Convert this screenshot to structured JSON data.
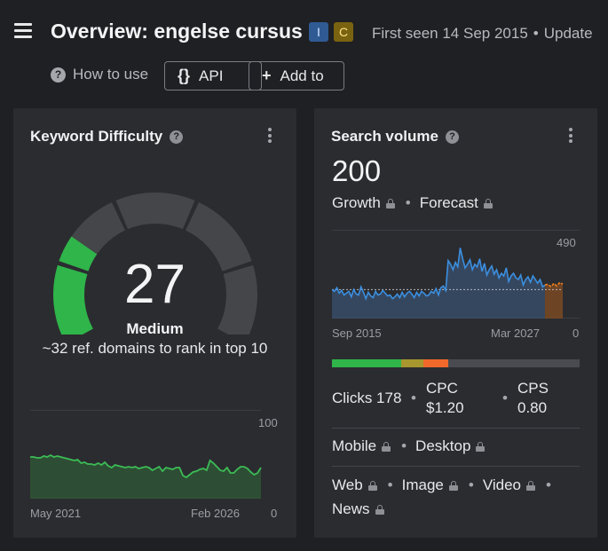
{
  "header": {
    "title": "Overview: engelse cursus",
    "badges": [
      {
        "label": "I",
        "color": "#2f5a94"
      },
      {
        "label": "C",
        "color": "#7a6310"
      }
    ],
    "first_seen": "First seen 14 Sep 2015",
    "updated_prefix": "Update",
    "how_to_use": "How to use",
    "api_label": "API",
    "add_to_label": "Add to",
    "icons": [
      "menu-icon",
      "help-icon",
      "braces-icon",
      "plus-icon"
    ]
  },
  "keyword_difficulty": {
    "title": "Keyword Difficulty",
    "value": "27",
    "value_num": 27,
    "max": 100,
    "level": "Medium",
    "description": "~32 ref. domains to rank in top 10",
    "gauge_color": "#2fb54a",
    "trend": {
      "y_max_label": "100",
      "y_min_label": "0",
      "x_start": "May 2021",
      "x_end": "Feb 2026",
      "values": [
        47,
        47,
        46,
        46,
        48,
        47,
        49,
        47,
        48,
        47,
        46,
        45,
        44,
        43,
        44,
        40,
        41,
        39,
        39,
        38,
        40,
        38,
        41,
        37,
        35,
        38,
        37,
        36,
        35,
        36,
        35,
        36,
        34,
        35,
        36,
        35,
        32,
        34,
        36,
        31,
        35,
        34,
        33,
        35,
        35,
        26,
        24,
        27,
        30,
        31,
        33,
        34,
        32,
        43,
        40,
        36,
        32,
        31,
        35,
        29,
        29,
        33,
        36,
        36,
        34,
        30,
        27,
        29,
        35
      ],
      "line_color": "#3cbc55"
    }
  },
  "search_volume": {
    "title": "Search volume",
    "value": "200",
    "growth_label": "Growth",
    "forecast_label": "Forecast",
    "trend": {
      "y_max_label": "490",
      "y_min_label": "0",
      "x_start": "Sep 2015",
      "x_end": "Mar 2027",
      "ymax": 490,
      "average": 160,
      "line_color": "#3b8fe0",
      "forecast_color": "#f0821e",
      "values": [
        160,
        150,
        170,
        140,
        155,
        130,
        140,
        150,
        120,
        160,
        135,
        130,
        175,
        145,
        110,
        145,
        125,
        115,
        150,
        130,
        135,
        155,
        140,
        125,
        130,
        110,
        120,
        135,
        115,
        145,
        120,
        140,
        150,
        135,
        115,
        145,
        125,
        150,
        140,
        125,
        130,
        150,
        140,
        165,
        130,
        170,
        180,
        155,
        320,
        300,
        270,
        310,
        285,
        390,
        330,
        280,
        300,
        325,
        270,
        300,
        285,
        330,
        260,
        305,
        240,
        270,
        290,
        245,
        270,
        225,
        250,
        235,
        280,
        205,
        235,
        250,
        225,
        215,
        240,
        185,
        215,
        230,
        200,
        235,
        215,
        195,
        215,
        175,
        185
      ],
      "forecast_values": [
        185,
        190,
        175,
        195,
        180,
        200,
        190
      ]
    },
    "difficulty_bar": [
      {
        "color": "#2fb54a",
        "fraction": 0.28
      },
      {
        "color": "#a8962e",
        "fraction": 0.09
      },
      {
        "color": "#f0682a",
        "fraction": 0.1
      },
      {
        "color": "#4a4b50",
        "fraction": 0.53
      }
    ],
    "clicks_label": "Clicks 178",
    "cpc_label": "CPC",
    "cpc_value": "$1.20",
    "cps_label": "CPS",
    "cps_value": "0.80",
    "mobile_label": "Mobile",
    "desktop_label": "Desktop",
    "serp_features": [
      "Web",
      "Image",
      "Video",
      "News"
    ]
  }
}
